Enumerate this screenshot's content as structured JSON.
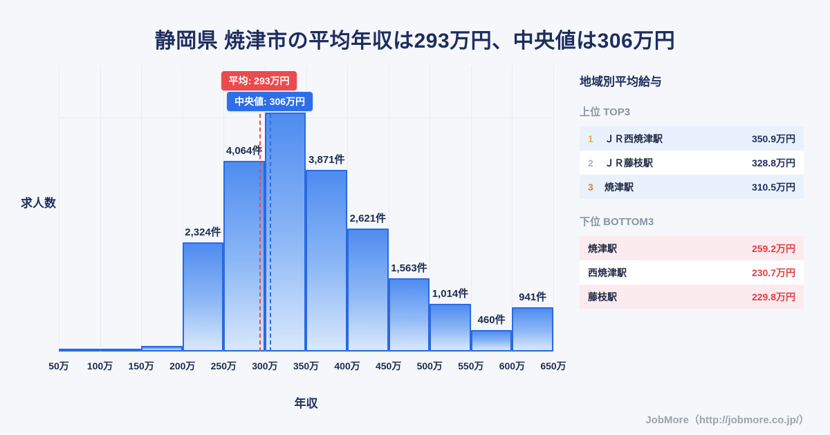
{
  "title": "静岡県 焼津市の平均年収は293万円、中央値は306万円",
  "chart_data": {
    "type": "bar",
    "title": "静岡県 焼津市の平均年収は293万円、中央値は306万円",
    "xlabel": "年収",
    "ylabel": "求人数",
    "x_tick_labels": [
      "50万",
      "100万",
      "150万",
      "200万",
      "250万",
      "300万",
      "350万",
      "400万",
      "450万",
      "500万",
      "550万",
      "600万",
      "650万"
    ],
    "bins": [
      "50-100万",
      "100-150万",
      "150-200万",
      "200-250万",
      "250-300万",
      "300-350万",
      "350-400万",
      "400-450万",
      "450-500万",
      "500-550万",
      "550-600万",
      "600-650万"
    ],
    "values": [
      15,
      35,
      120,
      2324,
      4064,
      5100,
      3871,
      2621,
      1563,
      1014,
      460,
      941
    ],
    "bar_labels": [
      "",
      "",
      "",
      "2,324件",
      "4,064件",
      "",
      "3,871件",
      "2,621件",
      "1,563件",
      "1,014件",
      "460件",
      "941件"
    ],
    "x_range": [
      50,
      650
    ],
    "ylim": [
      0,
      6100
    ],
    "grid": true,
    "legend": false,
    "annotations": {
      "mean": {
        "x": 293,
        "label": "平均: 293万円",
        "color": "#e94b4f"
      },
      "median": {
        "x": 306,
        "label": "中央値: 306万円",
        "color": "#2e6fe8"
      }
    },
    "bar_colors": {
      "top": "#4f8cf0",
      "bottom": "#d9e8fc",
      "border": "#2a6ae0"
    }
  },
  "sidebar": {
    "title": "地域別平均給与",
    "top": {
      "heading": "上位 TOP3",
      "rows": [
        {
          "rank": "1",
          "name": "ＪＲ西焼津駅",
          "value": "350.9万円"
        },
        {
          "rank": "2",
          "name": "ＪＲ藤枝駅",
          "value": "328.8万円"
        },
        {
          "rank": "3",
          "name": "焼津駅",
          "value": "310.5万円"
        }
      ]
    },
    "bottom": {
      "heading": "下位 BOTTOM3",
      "rows": [
        {
          "name": "焼津駅",
          "value": "259.2万円"
        },
        {
          "name": "西焼津駅",
          "value": "230.7万円"
        },
        {
          "name": "藤枝駅",
          "value": "229.8万円"
        }
      ]
    }
  },
  "footer": "JobMore（http://jobmore.co.jp/）",
  "colors": {
    "background": "#f5f7fa",
    "title_text": "#1d2d5f",
    "mean_red": "#e94b4f",
    "median_blue": "#2e6fe8",
    "top_row_bg": "#e9f1fd",
    "bottom_row_bg": "#fcebee",
    "bottom_value_red": "#e23c45",
    "rank1_gold": "#f0b11f",
    "rank2_gray": "#aab3bf",
    "rank3_bronze": "#e2812f"
  }
}
